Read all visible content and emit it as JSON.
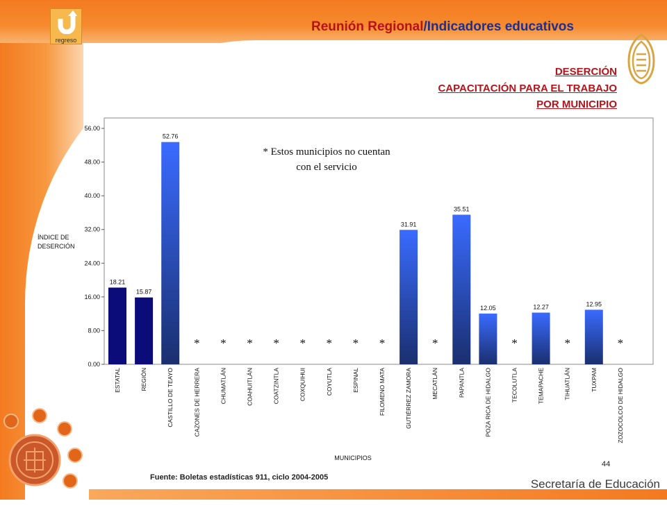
{
  "header": {
    "back_label": "regreso",
    "title_part1": "Reunión Regional",
    "title_part2": "/Indicadores educativos"
  },
  "section": {
    "line1": "DESERCIÓN",
    "line2": "CAPACITACIÓN PARA EL TRABAJO",
    "line3": "POR MUNICIPIO"
  },
  "note": {
    "line1": "* Estos municipios no cuentan",
    "line2": "con el servicio"
  },
  "footer": {
    "source": "Fuente: Boletas estadísticas 911, ciclo 2004-2005",
    "page_number": "44",
    "brand": "Secretaría de Educación"
  },
  "colors": {
    "accent": "#f47a20",
    "title_red": "#b5131a",
    "bar_navy": "#0b0b7a",
    "bar_blue_top": "#3a6bff",
    "bar_blue_bottom": "#1a2f6e"
  },
  "chart_data": {
    "type": "bar",
    "xlabel": "MUNICIPIOS",
    "ylabel_line1": "ÍNDICE DE",
    "ylabel_line2": "DESERCIÓN",
    "ylim": [
      0,
      56
    ],
    "yticks": [
      "0.00",
      "8.00",
      "16.00",
      "24.00",
      "32.00",
      "40.00",
      "48.00",
      "56.00"
    ],
    "ytick_values": [
      0,
      8,
      16,
      24,
      32,
      40,
      48,
      56
    ],
    "categories": [
      "ESTATAL",
      "REGIÓN",
      "CASTILLO DE TEAYO",
      "CAZONES DE HERRERA",
      "CHUMATLÁN",
      "COAHUITLÁN",
      "COATZINTLA",
      "COXQUIHUI",
      "COYUTLA",
      "ESPINAL",
      "FILOMENO MATA",
      "GUTIÉRREZ ZAMORA",
      "MECATLÁN",
      "PAPANTLA",
      "POZA RICA DE HIDALGO",
      "TECOLUTLA",
      "TEMAPACHE",
      "TIHUATLÁN",
      "TUXPAM",
      "ZOZOCOLCO DE HIDALGO"
    ],
    "values": [
      18.21,
      15.87,
      52.76,
      null,
      null,
      null,
      null,
      null,
      null,
      null,
      null,
      31.91,
      null,
      35.51,
      12.05,
      null,
      12.27,
      null,
      12.95,
      null
    ],
    "value_labels": [
      "18.21",
      "15.87",
      "52.76",
      "",
      "",
      "",
      "",
      "",
      "",
      "",
      "",
      "31.91",
      "",
      "35.51",
      "12.05",
      "",
      "12.27",
      "",
      "12.95",
      ""
    ],
    "no_service_marker": "*",
    "no_service": [
      false,
      false,
      false,
      true,
      true,
      true,
      true,
      true,
      true,
      true,
      true,
      false,
      true,
      false,
      false,
      true,
      false,
      true,
      false,
      true
    ],
    "bar_style": [
      "navy",
      "navy",
      "blue",
      "",
      "",
      "",
      "",
      "",
      "",
      "",
      "",
      "blue",
      "",
      "blue",
      "blue",
      "",
      "blue",
      "",
      "blue",
      ""
    ]
  }
}
